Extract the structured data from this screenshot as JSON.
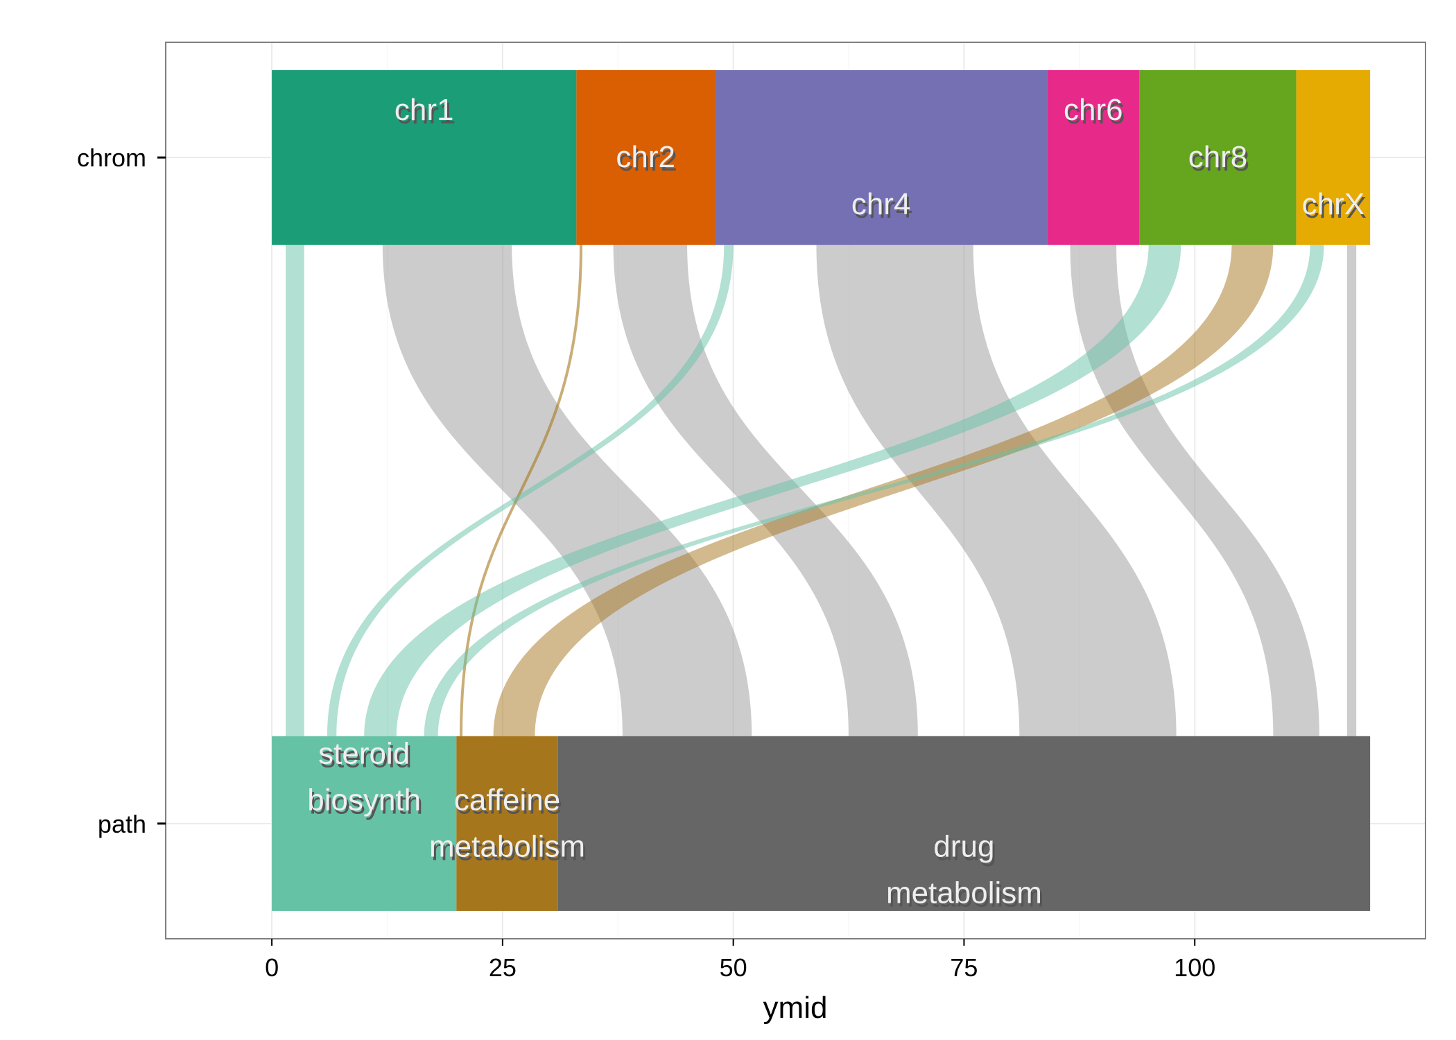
{
  "chart_data": {
    "type": "alluvial",
    "title": "",
    "xlabel": "ymid",
    "ylabel": "",
    "xlim": [
      -11.5,
      125
    ],
    "x_ticks": [
      0,
      25,
      50,
      75,
      100
    ],
    "x_tick_labels": [
      "0",
      "25",
      "50",
      "75",
      "100"
    ],
    "axes": [
      "chrom",
      "path"
    ],
    "grid": true,
    "total": 119,
    "strata": {
      "chrom": [
        {
          "label": "chr1",
          "start": 0,
          "end": 33,
          "color": "#1b9e77"
        },
        {
          "label": "chr2",
          "start": 33,
          "end": 48,
          "color": "#d95f02"
        },
        {
          "label": "chr4",
          "start": 48,
          "end": 84,
          "color": "#7570b3"
        },
        {
          "label": "chr6",
          "start": 84,
          "end": 94,
          "color": "#e7298a"
        },
        {
          "label": "chr8",
          "start": 94,
          "end": 111,
          "color": "#66a61e"
        },
        {
          "label": "chrX",
          "start": 111,
          "end": 119,
          "color": "#e6ab02"
        }
      ],
      "path": [
        {
          "label": "steroid biosynth",
          "label_lines": [
            "steroid",
            "biosynth"
          ],
          "start": 0,
          "end": 20,
          "color": "#66c2a5"
        },
        {
          "label": "caffeine metabolism",
          "label_lines": [
            "caffeine",
            "metabolism"
          ],
          "start": 20,
          "end": 31,
          "color": "#a6761d"
        },
        {
          "label": "drug metabolism",
          "label_lines": [
            "drug",
            "metabolism"
          ],
          "start": 31,
          "end": 119,
          "color": "#666666"
        }
      ]
    },
    "flows": [
      {
        "from": "chr1",
        "to": "steroid biosynth",
        "top": [
          1.5,
          3.5
        ],
        "bottom": [
          1.5,
          3.5
        ],
        "color": "#66c2a5"
      },
      {
        "from": "chr1",
        "to": "drug metabolism",
        "top": [
          12,
          26
        ],
        "bottom": [
          38,
          52
        ],
        "color": "#999999"
      },
      {
        "from": "chr2",
        "to": "caffeine metabolism",
        "top": [
          33.5,
          33.5
        ],
        "bottom": [
          20.5,
          20.5
        ],
        "color": "#a6761d"
      },
      {
        "from": "chr2",
        "to": "drug metabolism",
        "top": [
          37,
          45
        ],
        "bottom": [
          62.5,
          70
        ],
        "color": "#999999"
      },
      {
        "from": "chr4",
        "to": "steroid biosynth",
        "top": [
          49,
          50
        ],
        "bottom": [
          6,
          7
        ],
        "color": "#66c2a5"
      },
      {
        "from": "chr4",
        "to": "drug metabolism",
        "top": [
          59,
          76
        ],
        "bottom": [
          81,
          98
        ],
        "color": "#999999"
      },
      {
        "from": "chr6",
        "to": "drug metabolism",
        "top": [
          86.5,
          91.5
        ],
        "bottom": [
          108.5,
          113.5
        ],
        "color": "#999999"
      },
      {
        "from": "chr8",
        "to": "steroid biosynth",
        "top": [
          95,
          98.5
        ],
        "bottom": [
          10,
          13.5
        ],
        "color": "#66c2a5"
      },
      {
        "from": "chr8",
        "to": "caffeine metabolism",
        "top": [
          104,
          108.5
        ],
        "bottom": [
          24,
          28.5
        ],
        "color": "#a6761d"
      },
      {
        "from": "chrX",
        "to": "steroid biosynth",
        "top": [
          112.5,
          114
        ],
        "bottom": [
          16.5,
          18
        ],
        "color": "#66c2a5"
      },
      {
        "from": "chrX",
        "to": "drug metabolism",
        "top": [
          116.5,
          117.5
        ],
        "bottom": [
          116.5,
          117.5
        ],
        "color": "#999999"
      }
    ]
  }
}
